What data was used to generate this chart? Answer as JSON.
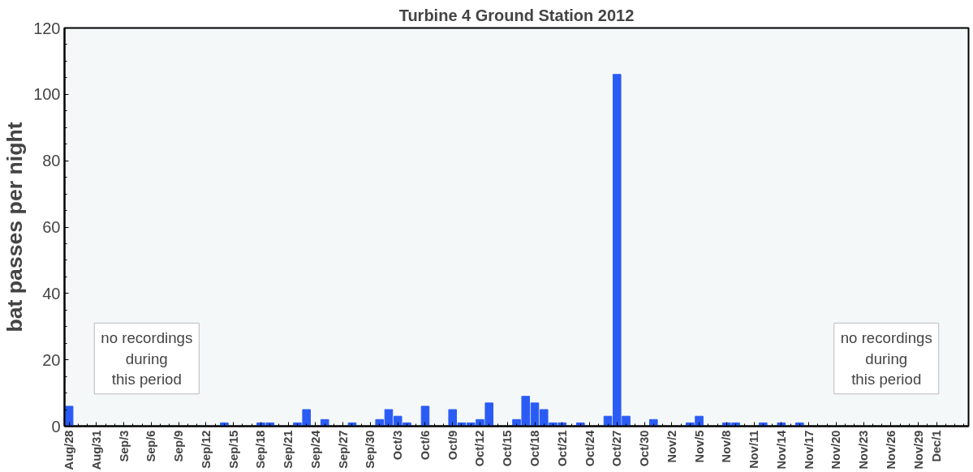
{
  "chart_data": {
    "type": "bar",
    "title": "Turbine 4 Ground Station 2012",
    "ylabel": "bat passes per night",
    "categories": [
      "Aug/28",
      null,
      null,
      "Aug/31",
      null,
      null,
      "Sep/3",
      null,
      null,
      "Sep/6",
      null,
      null,
      "Sep/9",
      null,
      null,
      "Sep/12",
      null,
      null,
      "Sep/15",
      null,
      null,
      "Sep/18",
      null,
      null,
      "Sep/21",
      null,
      null,
      "Sep/24",
      null,
      null,
      "Sep/27",
      null,
      null,
      "Sep/30",
      null,
      null,
      "Oct/3",
      null,
      null,
      "Oct/6",
      null,
      null,
      "Oct/9",
      null,
      null,
      "Oct/12",
      null,
      null,
      "Oct/15",
      null,
      null,
      "Oct/18",
      null,
      null,
      "Oct/21",
      null,
      null,
      "Oct/24",
      null,
      null,
      "Oct/27",
      null,
      null,
      "Oct/30",
      null,
      null,
      "Nov/2",
      null,
      null,
      "Nov/5",
      null,
      null,
      "Nov/8",
      null,
      null,
      "Nov/11",
      null,
      null,
      "Nov/14",
      null,
      null,
      "Nov/17",
      null,
      null,
      "Nov/20",
      null,
      null,
      "Nov/23",
      null,
      null,
      "Nov/26",
      null,
      null,
      "Nov/29",
      null,
      "Dec/1",
      null,
      null,
      null
    ],
    "values": [
      6,
      0,
      0,
      0,
      0,
      0,
      0,
      0,
      0,
      0,
      0,
      0,
      0,
      0,
      0,
      0,
      0,
      1,
      0,
      0,
      0,
      1,
      1,
      0,
      0,
      1,
      5,
      0,
      2,
      0,
      0,
      1,
      0,
      0,
      2,
      5,
      3,
      1,
      0,
      6,
      0,
      0,
      5,
      1,
      1,
      2,
      7,
      0,
      0,
      2,
      9,
      7,
      5,
      1,
      1,
      0,
      1,
      0,
      0,
      3,
      106,
      3,
      0,
      0,
      2,
      0,
      0,
      0,
      1,
      3,
      0,
      0,
      1,
      1,
      0,
      0,
      1,
      0,
      1,
      0,
      1,
      0,
      0,
      0,
      0,
      0,
      0,
      0,
      0,
      0,
      0,
      0,
      0,
      0,
      0,
      0,
      0,
      0,
      0
    ],
    "color": "#2a5cf5",
    "ylim": [
      0,
      120
    ],
    "yticks": [
      0,
      20,
      40,
      60,
      80,
      100,
      120
    ],
    "grid": false,
    "annotations": [
      "no recordings\nduring\nthis period",
      "no recordings\nduring\nthis period"
    ]
  }
}
